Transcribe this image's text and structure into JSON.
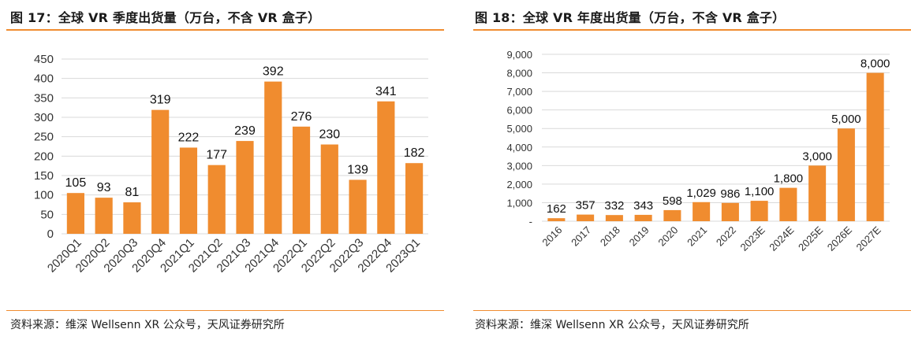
{
  "colors": {
    "bar": "#f08c2f",
    "rule": "#f08c2f",
    "grid": "#d9d9d9",
    "text": "#1a1a1a"
  },
  "left": {
    "title": "图 17：全球 VR 季度出货量（万台，不含 VR 盒子）",
    "source": "资料来源：维深  Wellsenn XR 公众号，天风证券研究所"
  },
  "right": {
    "title": "图 18：全球 VR 年度出货量（万台，不含 VR 盒子）",
    "source": "资料来源：维深  Wellsenn XR 公众号，天风证券研究所"
  },
  "chart_data": [
    {
      "type": "bar",
      "categories": [
        "2020Q1",
        "2020Q2",
        "2020Q3",
        "2020Q4",
        "2021Q1",
        "2021Q2",
        "2021Q3",
        "2021Q4",
        "2022Q1",
        "2022Q2",
        "2022Q3",
        "2022Q4",
        "2023Q1"
      ],
      "values": [
        105,
        93,
        81,
        319,
        222,
        177,
        239,
        392,
        276,
        230,
        139,
        341,
        182
      ],
      "data_labels": [
        "105",
        "93",
        "81",
        "319",
        "222",
        "177",
        "239",
        "392",
        "276",
        "230",
        "139",
        "341",
        "182"
      ],
      "yticks": [
        0,
        50,
        100,
        150,
        200,
        250,
        300,
        350,
        400,
        450
      ],
      "ytick_labels": [
        "0",
        "50",
        "100",
        "150",
        "200",
        "250",
        "300",
        "350",
        "400",
        "450"
      ],
      "ylim": [
        0,
        450
      ],
      "grid": true,
      "legend": "none"
    },
    {
      "type": "bar",
      "categories": [
        "2016",
        "2017",
        "2018",
        "2019",
        "2020",
        "2021",
        "2022",
        "2023E",
        "2024E",
        "2025E",
        "2026E",
        "2027E"
      ],
      "values": [
        162,
        357,
        332,
        343,
        598,
        1029,
        986,
        1100,
        1800,
        3000,
        5000,
        8000
      ],
      "data_labels": [
        "162",
        "357",
        "332",
        "343",
        "598",
        "1,029",
        "986",
        "1,100",
        "1,800",
        "3,000",
        "5,000",
        "8,000"
      ],
      "yticks": [
        0,
        1000,
        2000,
        3000,
        4000,
        5000,
        6000,
        7000,
        8000,
        9000
      ],
      "ytick_labels": [
        "-",
        "1,000",
        "2,000",
        "3,000",
        "4,000",
        "5,000",
        "6,000",
        "7,000",
        "8,000",
        "9,000"
      ],
      "ylim": [
        0,
        9000
      ],
      "grid": true,
      "legend": "none"
    }
  ]
}
